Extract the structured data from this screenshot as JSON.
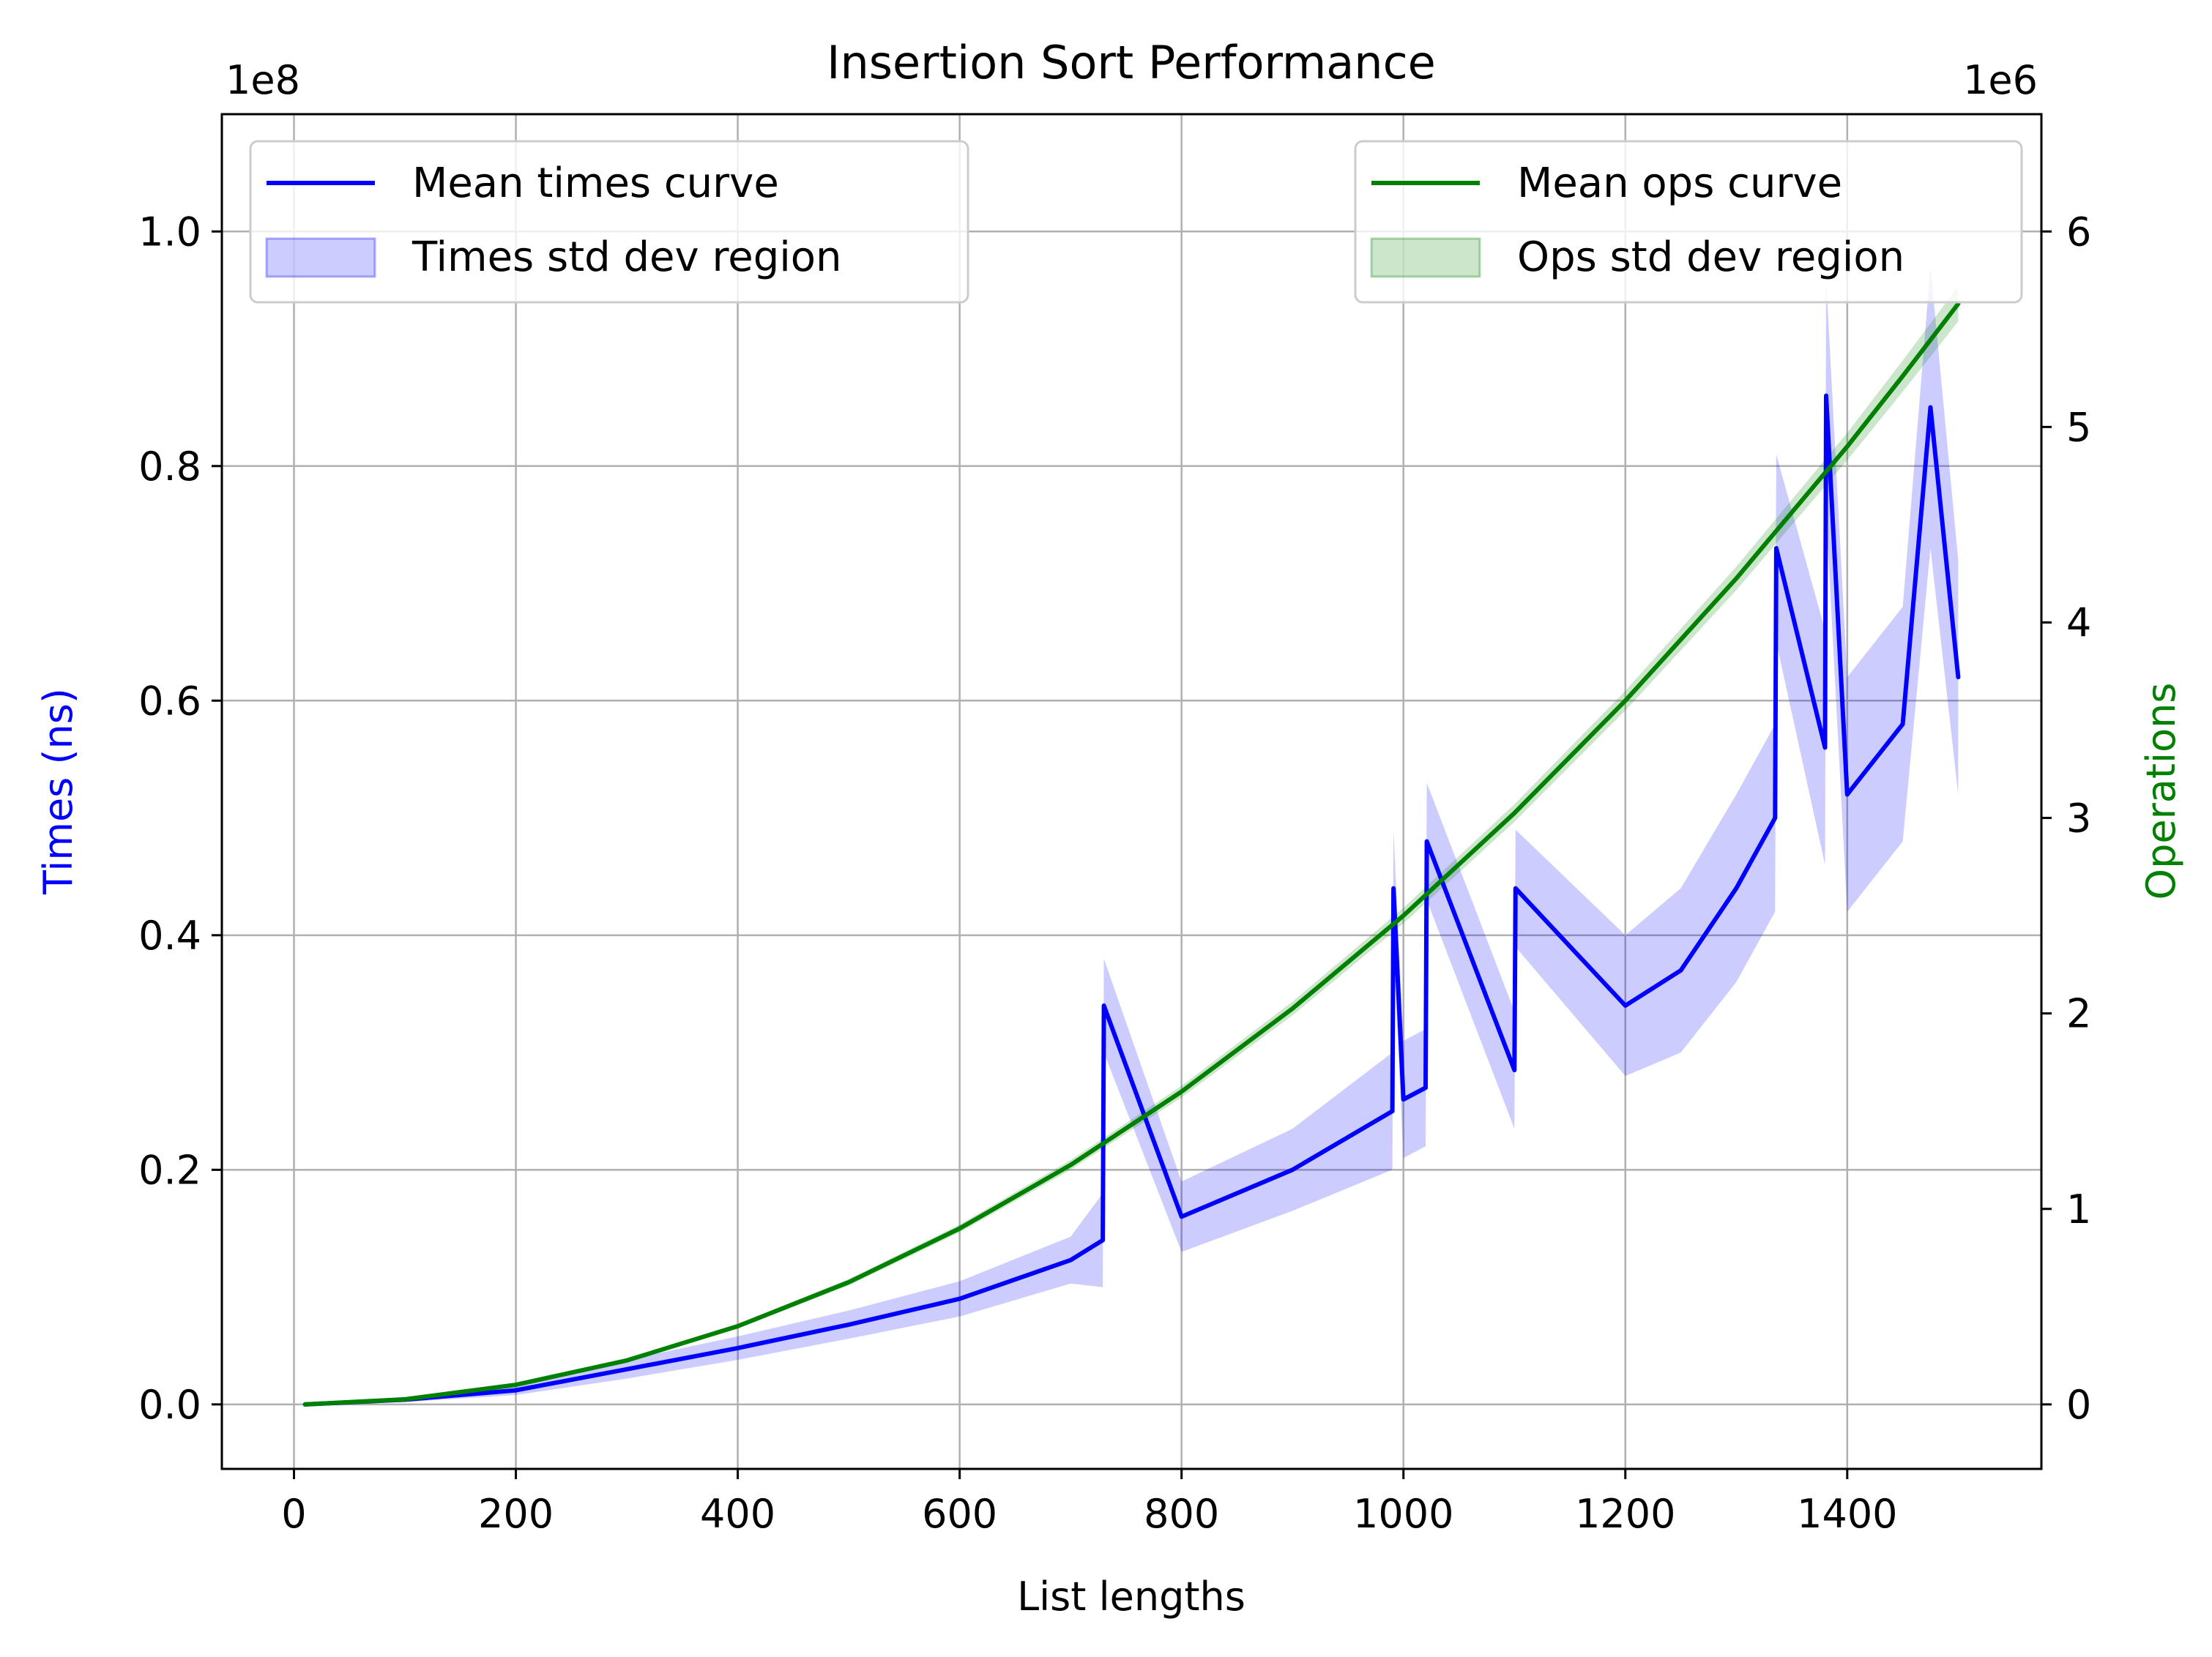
{
  "chart_data": {
    "type": "line",
    "title": "Insertion Sort Performance",
    "xlabel": "List lengths",
    "xlim": [
      -65,
      1575
    ],
    "xticks": [
      0,
      200,
      400,
      600,
      800,
      1000,
      1200,
      1400
    ],
    "left_axis": {
      "label": "Times (ns)",
      "label_color": "#0000ff",
      "multiplier_text": "1e8",
      "scale": 100000000,
      "ylim": [
        -0.055,
        1.1
      ],
      "ticks": [
        0.0,
        0.2,
        0.4,
        0.6,
        0.8,
        1.0
      ],
      "tick_labels": [
        "0.0",
        "0.2",
        "0.4",
        "0.6",
        "0.8",
        "1.0"
      ]
    },
    "right_axis": {
      "label": "Operations",
      "label_color": "#008000",
      "multiplier_text": "1e6",
      "scale": 1000000,
      "ylim": [
        -0.33,
        6.6
      ],
      "ticks": [
        0,
        1,
        2,
        3,
        4,
        5,
        6
      ],
      "tick_labels": [
        "0",
        "1",
        "2",
        "3",
        "4",
        "5",
        "6"
      ]
    },
    "grid": true,
    "series": [
      {
        "name": "Mean times curve",
        "axis": "left",
        "color": "#0000ff",
        "band_name": "Times std dev region",
        "band_color": "#0000ff",
        "x": [
          10,
          100,
          200,
          300,
          400,
          500,
          600,
          700,
          729,
          730,
          800,
          900,
          990,
          991,
          1000,
          1020,
          1021,
          1100,
          1101,
          1200,
          1250,
          1300,
          1335,
          1336,
          1380,
          1381,
          1400,
          1450,
          1475,
          1500
        ],
        "y": [
          0.0,
          0.004,
          0.012,
          0.03,
          0.048,
          0.068,
          0.09,
          0.123,
          0.14,
          0.34,
          0.16,
          0.2,
          0.25,
          0.44,
          0.26,
          0.27,
          0.48,
          0.285,
          0.44,
          0.34,
          0.37,
          0.44,
          0.5,
          0.73,
          0.56,
          0.86,
          0.52,
          0.58,
          0.85,
          0.62
        ],
        "std": [
          0.0,
          0.002,
          0.004,
          0.008,
          0.01,
          0.012,
          0.015,
          0.02,
          0.04,
          0.04,
          0.03,
          0.035,
          0.05,
          0.05,
          0.05,
          0.05,
          0.05,
          0.05,
          0.05,
          0.06,
          0.07,
          0.08,
          0.08,
          0.08,
          0.1,
          0.1,
          0.1,
          0.1,
          0.12,
          0.1
        ]
      },
      {
        "name": "Mean ops curve",
        "axis": "right",
        "color": "#008000",
        "band_name": "Ops std dev region",
        "band_color": "#008000",
        "x": [
          10,
          100,
          200,
          300,
          400,
          500,
          600,
          700,
          800,
          900,
          1000,
          1100,
          1200,
          1300,
          1400,
          1450,
          1500
        ],
        "y": [
          0.0,
          0.026,
          0.1,
          0.225,
          0.4,
          0.625,
          0.9,
          1.225,
          1.6,
          2.025,
          2.5,
          3.025,
          3.6,
          4.225,
          4.9,
          5.26,
          5.63
        ],
        "std": [
          0.0,
          0.002,
          0.005,
          0.008,
          0.012,
          0.016,
          0.02,
          0.025,
          0.03,
          0.035,
          0.04,
          0.045,
          0.05,
          0.06,
          0.07,
          0.08,
          0.09
        ]
      }
    ],
    "legends": [
      {
        "position": "upper-left",
        "entries": [
          "Mean times curve",
          "Times std dev region"
        ]
      },
      {
        "position": "upper-right",
        "entries": [
          "Mean ops curve",
          "Ops std dev region"
        ]
      }
    ]
  }
}
